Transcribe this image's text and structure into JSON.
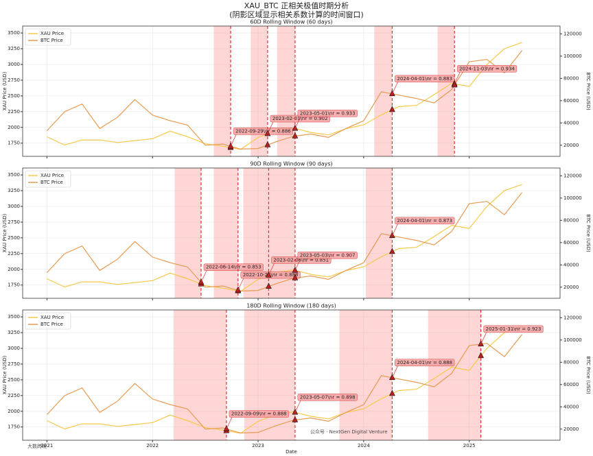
{
  "title": "XAU_BTC 正相关极值时期分析",
  "subtitle": "(阴影区域显示相关系数计算的时间窗口)",
  "watermarks": [
    "公众号 · NextGen Digital Venture",
    "大数跨境"
  ],
  "chart_data": [
    {
      "type": "line",
      "title": "60D Rolling Window (60 days)",
      "x": [
        2021.0,
        2021.167,
        2021.333,
        2021.5,
        2021.667,
        2021.833,
        2022.0,
        2022.167,
        2022.333,
        2022.5,
        2022.667,
        2022.833,
        2023.0,
        2023.167,
        2023.333,
        2023.5,
        2023.667,
        2023.833,
        2024.0,
        2024.167,
        2024.333,
        2024.5,
        2024.667,
        2024.833,
        2025.0,
        2025.167,
        2025.333,
        2025.5
      ],
      "series": [
        {
          "name": "XAU Price",
          "color": "#f7c948",
          "axis": "y",
          "values": [
            1850,
            1720,
            1800,
            1800,
            1760,
            1790,
            1820,
            1940,
            1850,
            1740,
            1700,
            1650,
            1840,
            1950,
            1990,
            1920,
            1880,
            1980,
            2040,
            2200,
            2330,
            2350,
            2520,
            2700,
            2650,
            3000,
            3250,
            3350
          ]
        },
        {
          "name": "BTC Price",
          "color": "#e69a50",
          "axis": "y2",
          "values": [
            33000,
            50000,
            57000,
            35000,
            45000,
            61000,
            47000,
            42000,
            38000,
            20000,
            21000,
            16500,
            17000,
            23000,
            28000,
            30000,
            27000,
            35000,
            42000,
            68000,
            65000,
            62000,
            58000,
            70000,
            95000,
            97000,
            85000,
            105000
          ]
        }
      ],
      "xlim": [
        2020.77,
        2025.86
      ],
      "xticks": [
        2021,
        2022,
        2023,
        2024,
        2025
      ],
      "ylim": [
        1540,
        3610
      ],
      "yticks": [
        1750,
        2000,
        2250,
        2500,
        2750,
        3000,
        3250,
        3500
      ],
      "y2lim": [
        10000,
        127000
      ],
      "y2ticks": [
        20000,
        40000,
        60000,
        80000,
        100000,
        120000
      ],
      "ylabel": "XAU Price (USD)",
      "y2label": "BTC Price (USD)",
      "grid": true,
      "legend": "upper left",
      "windows": [
        [
          2022.58,
          2022.74
        ],
        [
          2022.93,
          2023.09
        ],
        [
          2023.18,
          2023.35
        ],
        [
          2024.1,
          2024.27
        ],
        [
          2024.7,
          2024.86
        ]
      ],
      "events": [
        {
          "x": 2022.74,
          "xau": 1678,
          "btc": 19020,
          "label": "2022-09-29\\nr = 0.886"
        },
        {
          "x": 2023.09,
          "xau": 1899,
          "btc": 20240,
          "label": "2023-02-01\\nr = 0.902"
        },
        {
          "x": 2023.35,
          "xau": 1983,
          "btc": 28200,
          "label": "2023-05-01\\nr = 0.933"
        },
        {
          "x": 2024.27,
          "xau": 2281,
          "btc": 66140,
          "label": "2024-04-01\\nr = 0.883"
        },
        {
          "x": 2024.86,
          "xau": 2692,
          "btc": 74000,
          "label": "2024-11-03\\nr = 0.934"
        }
      ]
    },
    {
      "type": "line",
      "title": "90D Rolling Window (90 days)",
      "x": [
        2021.0,
        2021.167,
        2021.333,
        2021.5,
        2021.667,
        2021.833,
        2022.0,
        2022.167,
        2022.333,
        2022.5,
        2022.667,
        2022.833,
        2023.0,
        2023.167,
        2023.333,
        2023.5,
        2023.667,
        2023.833,
        2024.0,
        2024.167,
        2024.333,
        2024.5,
        2024.667,
        2024.833,
        2025.0,
        2025.167,
        2025.333,
        2025.5
      ],
      "series": [
        {
          "name": "XAU Price",
          "color": "#f7c948",
          "axis": "y",
          "values": [
            1850,
            1720,
            1800,
            1800,
            1760,
            1790,
            1820,
            1940,
            1850,
            1740,
            1700,
            1650,
            1840,
            1950,
            1990,
            1920,
            1880,
            1980,
            2040,
            2200,
            2330,
            2350,
            2520,
            2700,
            2650,
            3000,
            3250,
            3350
          ]
        },
        {
          "name": "BTC Price",
          "color": "#e69a50",
          "axis": "y2",
          "values": [
            33000,
            50000,
            57000,
            35000,
            45000,
            61000,
            47000,
            42000,
            38000,
            20000,
            21000,
            16500,
            17000,
            23000,
            28000,
            30000,
            27000,
            35000,
            42000,
            68000,
            65000,
            62000,
            58000,
            70000,
            95000,
            97000,
            85000,
            105000
          ]
        }
      ],
      "xlim": [
        2020.77,
        2025.86
      ],
      "xticks": [
        2021,
        2022,
        2023,
        2024,
        2025
      ],
      "ylim": [
        1540,
        3610
      ],
      "yticks": [
        1750,
        2000,
        2250,
        2500,
        2750,
        3000,
        3250,
        3500
      ],
      "y2lim": [
        10000,
        127000
      ],
      "y2ticks": [
        20000,
        40000,
        60000,
        80000,
        100000,
        120000
      ],
      "ylabel": "XAU Price (USD)",
      "y2label": "BTC Price (USD)",
      "grid": true,
      "legend": "upper left",
      "windows": [
        [
          2022.21,
          2022.46
        ],
        [
          2022.58,
          2022.81
        ],
        [
          2022.86,
          2023.1
        ],
        [
          2023.1,
          2023.35
        ],
        [
          2024.02,
          2024.27
        ]
      ],
      "events": [
        {
          "x": 2022.46,
          "xau": 1766,
          "btc": 24320,
          "label": "2022-06-14\\nr = 0.853"
        },
        {
          "x": 2022.81,
          "xau": 1657,
          "btc": 17370,
          "label": "2022-10-24\\nr = 0.888"
        },
        {
          "x": 2023.1,
          "xau": 1906,
          "btc": 20600,
          "label": "2023-02-06\\nr = 0.851"
        },
        {
          "x": 2023.35,
          "xau": 1983,
          "btc": 28200,
          "label": "2023-05-03\\nr = 0.907"
        },
        {
          "x": 2024.27,
          "xau": 2281,
          "btc": 66140,
          "label": "2024-04-01\\nr = 0.873"
        }
      ]
    },
    {
      "type": "line",
      "title": "180D Rolling Window (180 days)",
      "x": [
        2021.0,
        2021.167,
        2021.333,
        2021.5,
        2021.667,
        2021.833,
        2022.0,
        2022.167,
        2022.333,
        2022.5,
        2022.667,
        2022.833,
        2023.0,
        2023.167,
        2023.333,
        2023.5,
        2023.667,
        2023.833,
        2024.0,
        2024.167,
        2024.333,
        2024.5,
        2024.667,
        2024.833,
        2025.0,
        2025.167,
        2025.333,
        2025.5
      ],
      "series": [
        {
          "name": "XAU Price",
          "color": "#f7c948",
          "axis": "y",
          "values": [
            1850,
            1720,
            1800,
            1800,
            1760,
            1790,
            1820,
            1940,
            1850,
            1740,
            1700,
            1650,
            1840,
            1950,
            1990,
            1920,
            1880,
            1980,
            2040,
            2200,
            2330,
            2350,
            2520,
            2700,
            2650,
            3000,
            3250,
            3350
          ]
        },
        {
          "name": "BTC Price",
          "color": "#e69a50",
          "axis": "y2",
          "values": [
            33000,
            50000,
            57000,
            35000,
            45000,
            61000,
            47000,
            42000,
            38000,
            20000,
            21000,
            16500,
            17000,
            23000,
            28000,
            30000,
            27000,
            35000,
            42000,
            68000,
            65000,
            62000,
            58000,
            70000,
            95000,
            97000,
            85000,
            105000
          ]
        }
      ],
      "xlim": [
        2020.77,
        2025.86
      ],
      "xticks": [
        2021,
        2022,
        2023,
        2024,
        2025
      ],
      "ylim": [
        1540,
        3610
      ],
      "yticks": [
        1750,
        2000,
        2250,
        2500,
        2750,
        3000,
        3250,
        3500
      ],
      "y2lim": [
        10000,
        127000
      ],
      "y2ticks": [
        20000,
        40000,
        60000,
        80000,
        100000,
        120000
      ],
      "ylabel": "XAU Price (USD)",
      "y2label": "BTC Price (USD)",
      "xlabel": "Date",
      "grid": true,
      "legend": "upper left",
      "windows": [
        [
          2022.2,
          2022.7
        ],
        [
          2022.87,
          2023.35
        ],
        [
          2023.77,
          2024.27
        ],
        [
          2024.61,
          2025.11
        ]
      ],
      "events": [
        {
          "x": 2022.7,
          "xau": 1690,
          "btc": 20100,
          "label": "2022-09-09\\nr = 0.888"
        },
        {
          "x": 2023.35,
          "xau": 1983,
          "btc": 28200,
          "label": "2023-05-07\\nr = 0.898"
        },
        {
          "x": 2024.27,
          "xau": 2281,
          "btc": 66140,
          "label": "2024-04-01\\nr = 0.888"
        },
        {
          "x": 2025.11,
          "xau": 2881,
          "btc": 96320,
          "label": "2025-01-31\\nr = 0.923"
        }
      ]
    }
  ]
}
